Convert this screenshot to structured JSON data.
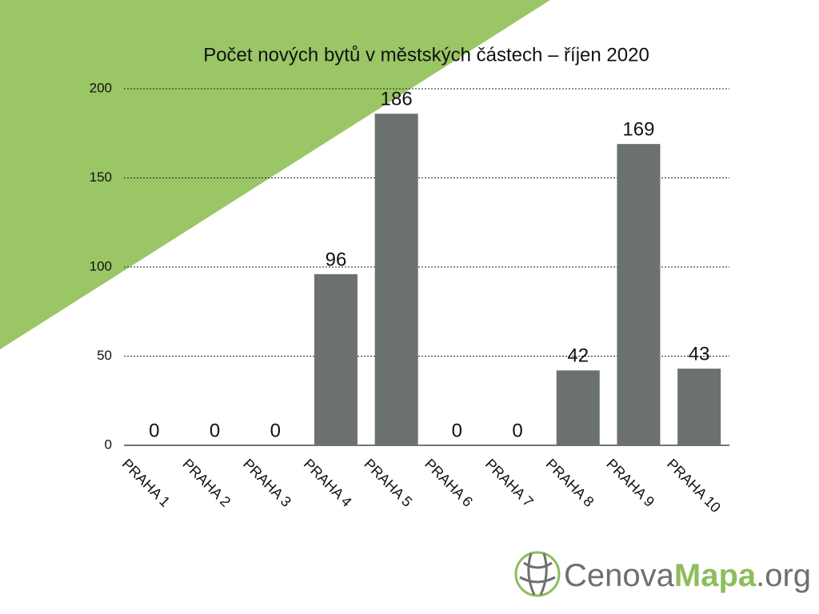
{
  "chart_data": {
    "type": "bar",
    "title": "Počet nových bytů v městských částech – říjen 2020",
    "categories": [
      "PRAHA 1",
      "PRAHA 2",
      "PRAHA 3",
      "PRAHA 4",
      "PRAHA 5",
      "PRAHA 6",
      "PRAHA 7",
      "PRAHA 8",
      "PRAHA 9",
      "PRAHA 10"
    ],
    "values": [
      0,
      0,
      0,
      96,
      186,
      0,
      0,
      42,
      169,
      43
    ],
    "color": "#6b716e",
    "ylim": [
      0,
      200
    ],
    "yticks": [
      0,
      50,
      100,
      150,
      200
    ],
    "grid": true
  },
  "logo": [
    "Cenova",
    "Mapa",
    ".org"
  ]
}
